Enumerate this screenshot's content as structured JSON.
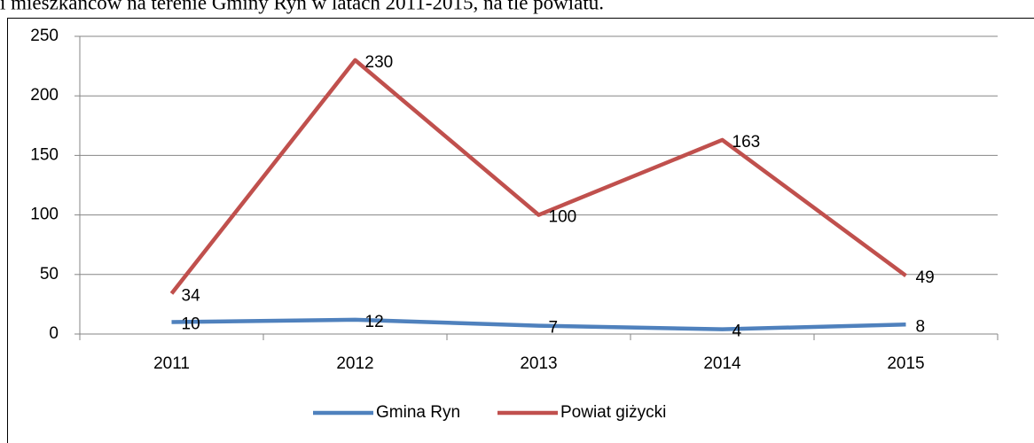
{
  "chart_data": {
    "type": "line",
    "title": "i mieszkańców na terenie Gminy Ryn w latach 2011-2015, na tle powiatu.",
    "categories": [
      "2011",
      "2012",
      "2013",
      "2014",
      "2015"
    ],
    "series": [
      {
        "name": "Gmina Ryn",
        "color": "#4f81bd",
        "values": [
          10,
          12,
          7,
          4,
          8
        ]
      },
      {
        "name": "Powiat giżycki",
        "color": "#c0504d",
        "values": [
          34,
          230,
          100,
          163,
          49
        ]
      }
    ],
    "ylim": [
      0,
      250
    ],
    "yticks": [
      0,
      50,
      100,
      150,
      200,
      250
    ],
    "grid": true,
    "legend": "bottom"
  }
}
